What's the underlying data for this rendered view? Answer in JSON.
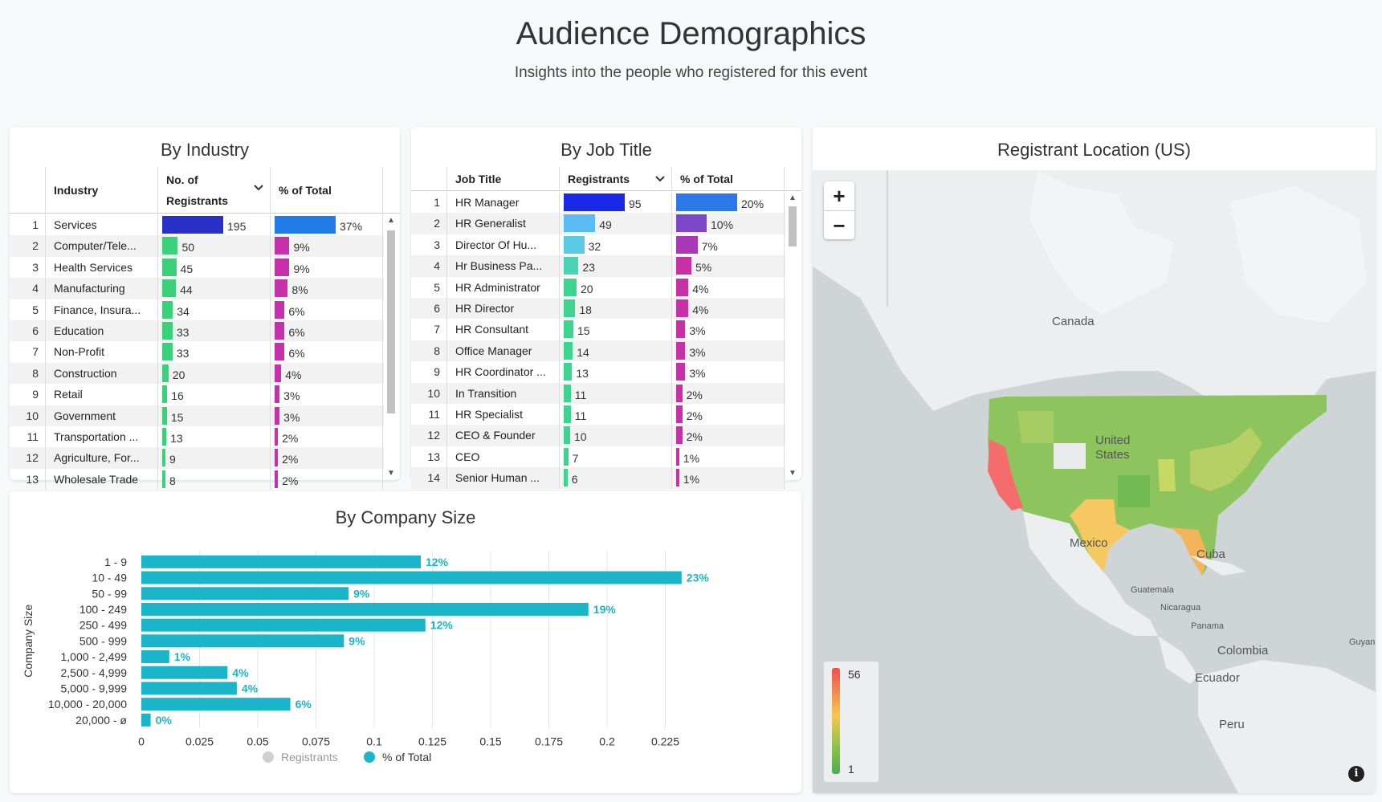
{
  "header": {
    "title": "Audience Demographics",
    "subtitle": "Insights into the people who registered for this event"
  },
  "industry": {
    "title": "By Industry",
    "columns": {
      "name": "Industry",
      "count_line1": "No. of",
      "count_line2": "Registrants",
      "pct": "% of Total"
    },
    "max_count": 195,
    "rows": [
      {
        "rank": "1",
        "name": "Services",
        "count": 195,
        "count_label": "195",
        "pct": 37,
        "pct_label": "37%"
      },
      {
        "rank": "2",
        "name": "Computer/Tele...",
        "count": 50,
        "count_label": "50",
        "pct": 9,
        "pct_label": "9%"
      },
      {
        "rank": "3",
        "name": "Health Services",
        "count": 45,
        "count_label": "45",
        "pct": 9,
        "pct_label": "9%"
      },
      {
        "rank": "4",
        "name": "Manufacturing",
        "count": 44,
        "count_label": "44",
        "pct": 8,
        "pct_label": "8%"
      },
      {
        "rank": "5",
        "name": "Finance, Insura...",
        "count": 34,
        "count_label": "34",
        "pct": 6,
        "pct_label": "6%"
      },
      {
        "rank": "6",
        "name": "Education",
        "count": 33,
        "count_label": "33",
        "pct": 6,
        "pct_label": "6%"
      },
      {
        "rank": "7",
        "name": "Non-Profit",
        "count": 33,
        "count_label": "33",
        "pct": 6,
        "pct_label": "6%"
      },
      {
        "rank": "8",
        "name": "Construction",
        "count": 20,
        "count_label": "20",
        "pct": 4,
        "pct_label": "4%"
      },
      {
        "rank": "9",
        "name": "Retail",
        "count": 16,
        "count_label": "16",
        "pct": 3,
        "pct_label": "3%"
      },
      {
        "rank": "10",
        "name": "Government",
        "count": 15,
        "count_label": "15",
        "pct": 3,
        "pct_label": "3%"
      },
      {
        "rank": "11",
        "name": "Transportation ...",
        "count": 13,
        "count_label": "13",
        "pct": 2,
        "pct_label": "2%"
      },
      {
        "rank": "12",
        "name": "Agriculture, For...",
        "count": 9,
        "count_label": "9",
        "pct": 2,
        "pct_label": "2%"
      },
      {
        "rank": "13",
        "name": "Wholesale Trade",
        "count": 8,
        "count_label": "8",
        "pct": 2,
        "pct_label": "2%"
      }
    ]
  },
  "job": {
    "title": "By Job Title",
    "columns": {
      "name": "Job Title",
      "count": "Registrants",
      "pct": "% of Total"
    },
    "max_count": 95,
    "rows": [
      {
        "rank": "1",
        "name": "HR Manager",
        "count": 95,
        "count_label": "95",
        "pct": 20,
        "pct_label": "20%"
      },
      {
        "rank": "2",
        "name": "HR Generalist",
        "count": 49,
        "count_label": "49",
        "pct": 10,
        "pct_label": "10%"
      },
      {
        "rank": "3",
        "name": "Director Of Hu...",
        "count": 32,
        "count_label": "32",
        "pct": 7,
        "pct_label": "7%"
      },
      {
        "rank": "4",
        "name": "Hr Business Pa...",
        "count": 23,
        "count_label": "23",
        "pct": 5,
        "pct_label": "5%"
      },
      {
        "rank": "5",
        "name": "HR Administrator",
        "count": 20,
        "count_label": "20",
        "pct": 4,
        "pct_label": "4%"
      },
      {
        "rank": "6",
        "name": "HR Director",
        "count": 18,
        "count_label": "18",
        "pct": 4,
        "pct_label": "4%"
      },
      {
        "rank": "7",
        "name": "HR Consultant",
        "count": 15,
        "count_label": "15",
        "pct": 3,
        "pct_label": "3%"
      },
      {
        "rank": "8",
        "name": "Office Manager",
        "count": 14,
        "count_label": "14",
        "pct": 3,
        "pct_label": "3%"
      },
      {
        "rank": "9",
        "name": "HR Coordinator ...",
        "count": 13,
        "count_label": "13",
        "pct": 3,
        "pct_label": "3%"
      },
      {
        "rank": "10",
        "name": "In Transition",
        "count": 11,
        "count_label": "11",
        "pct": 2,
        "pct_label": "2%"
      },
      {
        "rank": "11",
        "name": "HR Specialist",
        "count": 11,
        "count_label": "11",
        "pct": 2,
        "pct_label": "2%"
      },
      {
        "rank": "12",
        "name": "CEO & Founder",
        "count": 10,
        "count_label": "10",
        "pct": 2,
        "pct_label": "2%"
      },
      {
        "rank": "13",
        "name": "CEO",
        "count": 7,
        "count_label": "7",
        "pct": 1,
        "pct_label": "1%"
      },
      {
        "rank": "14",
        "name": "Senior Human ...",
        "count": 6,
        "count_label": "6",
        "pct": 1,
        "pct_label": "1%"
      }
    ]
  },
  "company": {
    "title": "By Company Size",
    "legend": {
      "registrants": "Registrants",
      "pct": "% of Total"
    }
  },
  "chart_data": {
    "type": "bar",
    "orientation": "horizontal",
    "title": "By Company Size",
    "ylabel": "Company Size",
    "xlabel": "",
    "xlim": [
      0,
      0.25
    ],
    "xticks": [
      "0",
      "0.025",
      "0.05",
      "0.075",
      "0.1",
      "0.125",
      "0.15",
      "0.175",
      "0.2",
      "0.225"
    ],
    "categories": [
      "1 - 9",
      "10 - 49",
      "50 - 99",
      "100 - 249",
      "250 - 499",
      "500 - 999",
      "1,000 - 2,499",
      "2,500 - 4,999",
      "5,000 - 9,999",
      "10,000 - 20,000",
      "20,000 - ø"
    ],
    "series": [
      {
        "name": "% of Total",
        "values": [
          0.12,
          0.232,
          0.089,
          0.192,
          0.122,
          0.087,
          0.012,
          0.037,
          0.041,
          0.064,
          0.004
        ],
        "labels": [
          "12%",
          "23%",
          "9%",
          "19%",
          "12%",
          "9%",
          "1%",
          "4%",
          "4%",
          "6%",
          "0%"
        ]
      }
    ]
  },
  "map": {
    "title": "Registrant Location (US)",
    "zoom_in": "+",
    "zoom_out": "−",
    "legend_max": "56",
    "legend_min": "1",
    "info": "i",
    "labels": {
      "canada": "Canada",
      "us_line1": "United",
      "us_line2": "States",
      "mexico": "Mexico",
      "cuba": "Cuba",
      "guatemala": "Guatemala",
      "nicaragua": "Nicaragua",
      "panama": "Panama",
      "colombia": "Colombia",
      "ecuador": "Ecuador",
      "peru": "Peru",
      "guyana": "Guyan"
    },
    "colors": {
      "high": "#f26b6b",
      "mid": "#f6c85f",
      "low": "#6fbf4f"
    }
  },
  "colors": {
    "industry_count": [
      "#2830c8",
      "#3dd07a"
    ],
    "industry_pct": [
      "#1e7be8",
      "#c431a9"
    ],
    "job_count": [
      "#1a28e8",
      "#5bbcf5",
      "#5cc9e4",
      "#49d3b4",
      "#3dd58e"
    ],
    "job_pct": [
      "#2d78e8",
      "#7c46c8",
      "#a838b8",
      "#c631a6"
    ],
    "bar": "#1bb5c9"
  }
}
